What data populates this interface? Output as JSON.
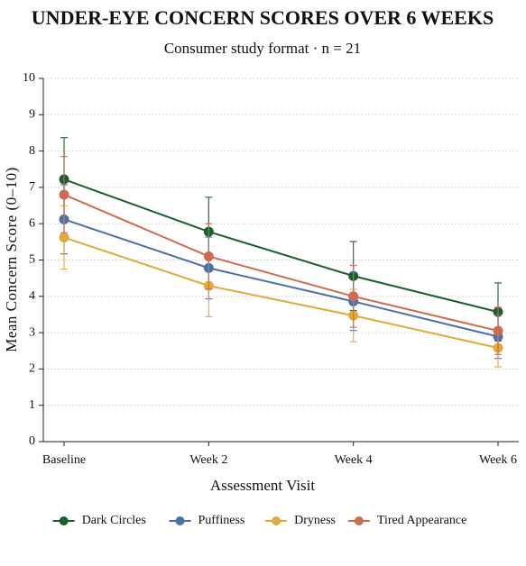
{
  "chart_data": {
    "type": "line",
    "title": "UNDER-EYE CONCERN SCORES OVER 6 WEEKS",
    "subtitle": "Consumer study format · n = 21",
    "x_label": "Assessment Visit",
    "y_label": "Mean Concern Score (0–10)",
    "categories": [
      "Baseline",
      "Week 2",
      "Week 4",
      "Week 6"
    ],
    "series": [
      {
        "name": "Dark Circles",
        "color": "#1e5e2e",
        "values": [
          7.22,
          5.78,
          4.56,
          3.57
        ],
        "errors": [
          1.15,
          0.95,
          0.95,
          0.8
        ]
      },
      {
        "name": "Puffiness",
        "color": "#4a72a8",
        "values": [
          6.12,
          4.78,
          3.86,
          2.89
        ],
        "errors": [
          0.95,
          0.85,
          0.8,
          0.6
        ]
      },
      {
        "name": "Dryness",
        "color": "#e0a93a",
        "values": [
          5.62,
          4.29,
          3.47,
          2.58
        ],
        "errors": [
          0.87,
          0.85,
          0.72,
          0.52
        ]
      },
      {
        "name": "Tired Appearance",
        "color": "#cf6a50",
        "values": [
          6.8,
          5.1,
          4.0,
          3.05
        ],
        "errors": [
          1.05,
          0.9,
          0.85,
          0.65
        ]
      }
    ],
    "ylim": [
      0,
      10
    ],
    "yticks": [
      0,
      1,
      2,
      3,
      4,
      5,
      6,
      7,
      8,
      9,
      10
    ],
    "grid": true,
    "legend": "bottom"
  }
}
